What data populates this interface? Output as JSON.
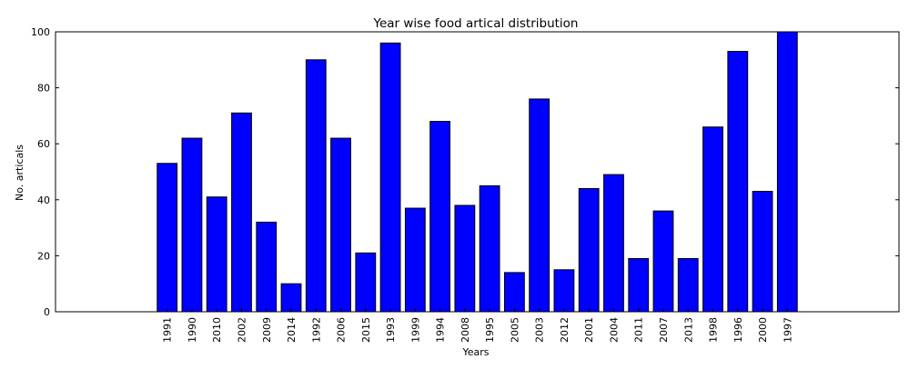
{
  "chart_data": {
    "type": "bar",
    "title": "Year wise food artical distribution",
    "xlabel": "Years",
    "ylabel": "No. articals",
    "categories": [
      "1991",
      "1990",
      "2010",
      "2002",
      "2009",
      "2014",
      "1992",
      "2006",
      "2015",
      "1993",
      "1999",
      "1994",
      "2008",
      "1995",
      "2005",
      "2003",
      "2012",
      "2001",
      "2004",
      "2011",
      "2007",
      "2013",
      "1998",
      "1996",
      "2000",
      "1997"
    ],
    "values": [
      53,
      62,
      41,
      71,
      32,
      10,
      90,
      62,
      21,
      96,
      37,
      68,
      38,
      45,
      14,
      76,
      15,
      44,
      49,
      19,
      36,
      19,
      66,
      93,
      43,
      100
    ],
    "ylim": [
      0,
      100
    ],
    "yticks": [
      0,
      20,
      40,
      60,
      80,
      100
    ],
    "bar_color": "#0000ff",
    "grid": false
  }
}
